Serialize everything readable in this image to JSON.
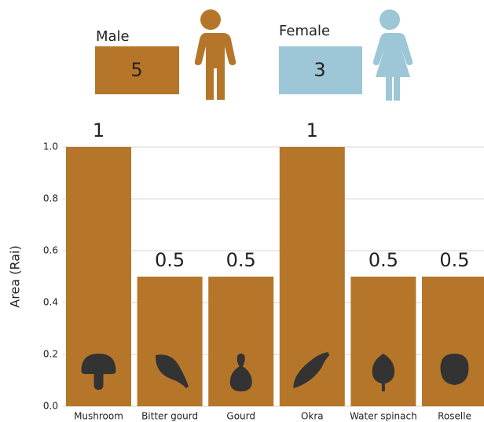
{
  "summary": [
    {
      "label": "Male",
      "value": 5,
      "color": "#b5762a"
    },
    {
      "label": "Female",
      "value": 3,
      "color": "#9dc6d6"
    }
  ],
  "chart_data": {
    "type": "bar",
    "y_label": "Area (Rai)",
    "categories": [
      "Mushroom",
      "Bitter gourd",
      "Gourd",
      "Okra",
      "Water spinach",
      "Roselle"
    ],
    "values": [
      1,
      0.5,
      0.5,
      1,
      0.5,
      0.5
    ],
    "color": "#b5762a",
    "ylim": [
      0,
      1
    ],
    "yticks": [
      {
        "value": 0,
        "label": "0.0"
      },
      0.2,
      0.4,
      0.6,
      0.8,
      {
        "value": 1,
        "label": "1.0"
      }
    ],
    "grid": true
  }
}
